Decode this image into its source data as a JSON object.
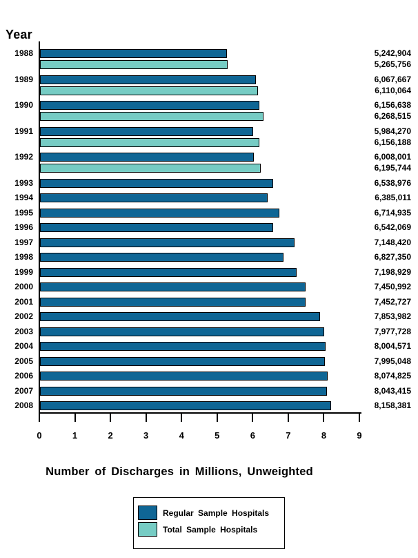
{
  "page": {
    "background": "#ffffff"
  },
  "colors": {
    "regular_series": "#0f6695",
    "total_series": "#76ccc4",
    "bar_border": "#000000",
    "axis": "#000000",
    "text": "#000000"
  },
  "chart_data": {
    "type": "bar",
    "orientation": "horizontal",
    "title": "",
    "ylabel": "Year",
    "xlabel": "Number of Discharges in Millions, Unweighted",
    "xlim": [
      0,
      9
    ],
    "x_ticks": [
      "0",
      "1",
      "2",
      "3",
      "4",
      "5",
      "6",
      "7",
      "8",
      "9"
    ],
    "value_scale_per_tick": 1000000,
    "grid": false,
    "categories": [
      "1988",
      "1989",
      "1990",
      "1991",
      "1992",
      "1993",
      "1994",
      "1995",
      "1996",
      "1997",
      "1998",
      "1999",
      "2000",
      "2001",
      "2002",
      "2003",
      "2004",
      "2005",
      "2006",
      "2007",
      "2008"
    ],
    "series": [
      {
        "name": "Regular Sample Hospitals",
        "key": "regular",
        "color": "#0f6695",
        "values": [
          5242904,
          6067667,
          6156638,
          5984270,
          6008001,
          6538976,
          6385011,
          6714935,
          6542069,
          7148420,
          6827350,
          7198929,
          7450992,
          7452727,
          7853982,
          7977728,
          8004571,
          7995048,
          8074825,
          8043415,
          8158381
        ],
        "labels": [
          "5,242,904",
          "6,067,667",
          "6,156,638",
          "5,984,270",
          "6,008,001",
          "6,538,976",
          "6,385,011",
          "6,714,935",
          "6,542,069",
          "7,148,420",
          "6,827,350",
          "7,198,929",
          "7,450,992",
          "7,452,727",
          "7,853,982",
          "7,977,728",
          "8,004,571",
          "7,995,048",
          "8,074,825",
          "8,043,415",
          "8,158,381"
        ]
      },
      {
        "name": "Total Sample Hospitals",
        "key": "total",
        "color": "#76ccc4",
        "values": [
          5265756,
          6110064,
          6268515,
          6156188,
          6195744,
          null,
          null,
          null,
          null,
          null,
          null,
          null,
          null,
          null,
          null,
          null,
          null,
          null,
          null,
          null,
          null
        ],
        "labels": [
          "5,265,756",
          "6,110,064",
          "6,268,515",
          "6,156,188",
          "6,195,744",
          null,
          null,
          null,
          null,
          null,
          null,
          null,
          null,
          null,
          null,
          null,
          null,
          null,
          null,
          null,
          null
        ]
      }
    ],
    "legend": {
      "position": "bottom-center",
      "items": [
        {
          "label": "Regular Sample Hospitals",
          "color": "#0f6695"
        },
        {
          "label": "Total Sample Hospitals",
          "color": "#76ccc4"
        }
      ]
    }
  }
}
